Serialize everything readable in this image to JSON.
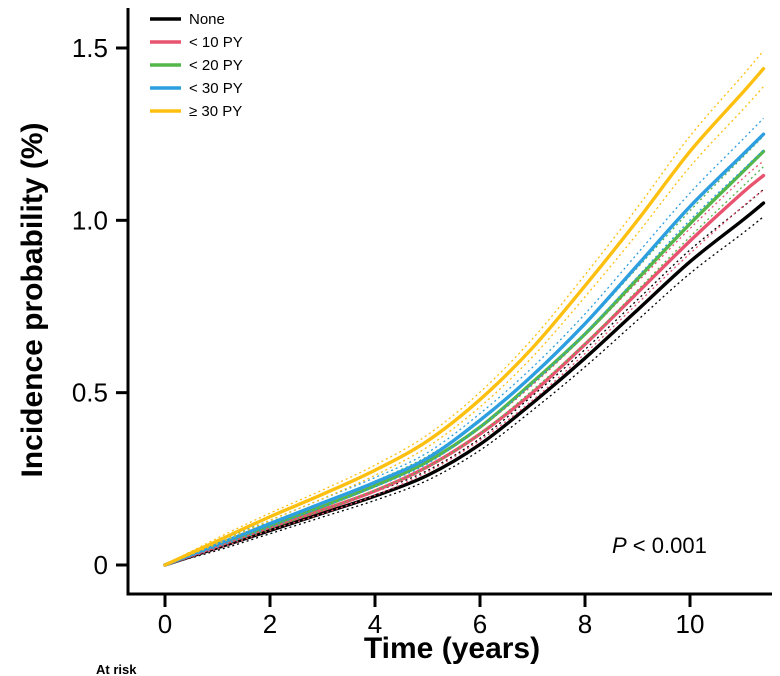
{
  "chart_data": {
    "type": "line",
    "title": "",
    "xlabel": "Time (years)",
    "ylabel": "Incidence probability (%)",
    "xlim": [
      0,
      11.5
    ],
    "ylim": [
      0,
      1.6
    ],
    "grid": false,
    "legend_position": "top-left",
    "x_ticks": [
      "0",
      "2",
      "4",
      "6",
      "8",
      "10"
    ],
    "y_ticks": [
      "0",
      "0.5",
      "1.0",
      "1.5"
    ],
    "x": [
      0,
      1,
      2,
      3,
      4,
      5,
      6,
      7,
      8,
      9,
      10,
      11,
      11.4
    ],
    "series": [
      {
        "name": "None",
        "color": "#000000",
        "values": [
          0,
          0.05,
          0.1,
          0.15,
          0.2,
          0.26,
          0.35,
          0.47,
          0.6,
          0.74,
          0.88,
          1.0,
          1.05
        ]
      },
      {
        "name": "< 10 PY",
        "color": "#e8536f",
        "values": [
          0,
          0.055,
          0.11,
          0.16,
          0.215,
          0.285,
          0.38,
          0.5,
          0.64,
          0.79,
          0.94,
          1.08,
          1.13
        ]
      },
      {
        "name": "< 20 PY",
        "color": "#55b64a",
        "values": [
          0,
          0.06,
          0.115,
          0.17,
          0.23,
          0.3,
          0.4,
          0.53,
          0.67,
          0.83,
          0.99,
          1.14,
          1.2
        ]
      },
      {
        "name": "< 30 PY",
        "color": "#2d9fe0",
        "values": [
          0,
          0.06,
          0.12,
          0.18,
          0.24,
          0.31,
          0.42,
          0.55,
          0.7,
          0.87,
          1.04,
          1.19,
          1.25
        ]
      },
      {
        "name": "≥ 30 PY",
        "color": "#fdc010",
        "values": [
          0,
          0.07,
          0.14,
          0.205,
          0.275,
          0.36,
          0.48,
          0.63,
          0.81,
          1.0,
          1.2,
          1.37,
          1.44
        ]
      }
    ],
    "ci_fraction": 0.032,
    "ci_base": 0.006,
    "annotation": {
      "p_label": "P",
      "p_rest": " < 0.001"
    },
    "at_risk_label": "At risk"
  }
}
